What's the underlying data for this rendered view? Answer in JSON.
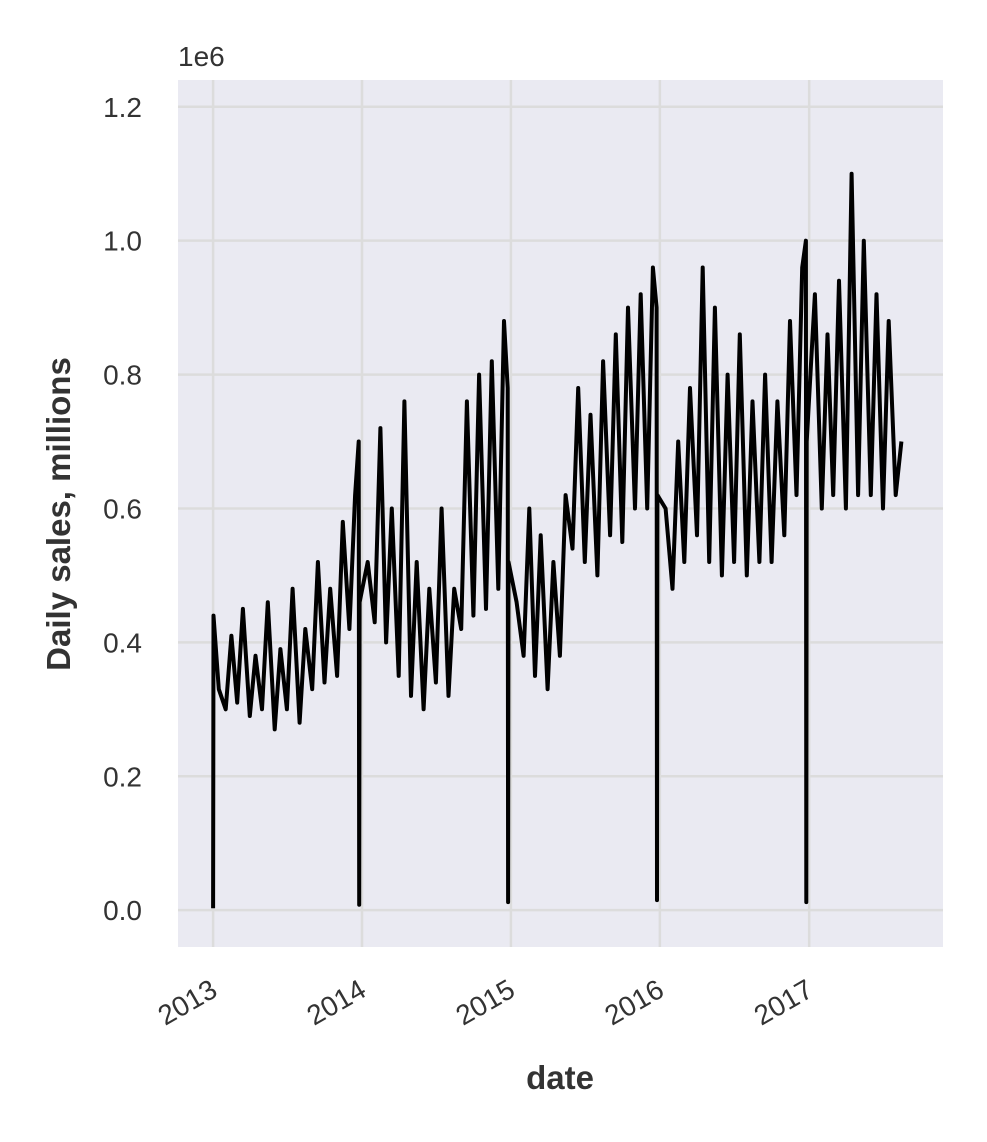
{
  "chart_data": {
    "type": "line",
    "xlabel": "date",
    "ylabel": "Daily sales, millions",
    "y_offset_label": "1e6",
    "ylim": [
      -55000,
      1240000
    ],
    "xlim": [
      "2012-10-07",
      "2017-11-25"
    ],
    "yticks": [
      0,
      200000,
      400000,
      600000,
      800000,
      1000000,
      1200000
    ],
    "ytick_labels": [
      "0.0",
      "0.2",
      "0.4",
      "0.6",
      "0.8",
      "1.0",
      "1.2"
    ],
    "xticks": [
      "2013-01-01",
      "2014-01-01",
      "2015-01-01",
      "2016-01-01",
      "2017-01-01"
    ],
    "xtick_labels": [
      "2013",
      "2014",
      "2015",
      "2016",
      "2017"
    ],
    "grid": true,
    "line_color": "#000000",
    "background_color": "#eaeaf2",
    "grid_color": "#dcdcdc",
    "series": [
      {
        "x": [
          "2013-01-01",
          "2013-01-02",
          "2013-01-15",
          "2013-02-01",
          "2013-02-15",
          "2013-03-01",
          "2013-03-15",
          "2013-04-01",
          "2013-04-15",
          "2013-05-01",
          "2013-05-15",
          "2013-06-01",
          "2013-06-15",
          "2013-07-01",
          "2013-07-15",
          "2013-08-01",
          "2013-08-15",
          "2013-09-01",
          "2013-09-15",
          "2013-10-01",
          "2013-10-15",
          "2013-11-01",
          "2013-11-15",
          "2013-12-01",
          "2013-12-15",
          "2013-12-24",
          "2013-12-25",
          "2013-12-26",
          "2014-01-15",
          "2014-02-01",
          "2014-02-15",
          "2014-03-01",
          "2014-03-15",
          "2014-04-01",
          "2014-04-15",
          "2014-05-01",
          "2014-05-15",
          "2014-06-01",
          "2014-06-15",
          "2014-07-01",
          "2014-07-15",
          "2014-08-01",
          "2014-08-15",
          "2014-09-01",
          "2014-09-15",
          "2014-10-01",
          "2014-10-15",
          "2014-11-01",
          "2014-11-15",
          "2014-12-01",
          "2014-12-15",
          "2014-12-24",
          "2014-12-25",
          "2014-12-26",
          "2015-01-15",
          "2015-02-01",
          "2015-02-15",
          "2015-03-01",
          "2015-03-15",
          "2015-04-01",
          "2015-04-15",
          "2015-05-01",
          "2015-05-15",
          "2015-06-01",
          "2015-06-15",
          "2015-07-01",
          "2015-07-15",
          "2015-08-01",
          "2015-08-15",
          "2015-09-01",
          "2015-09-15",
          "2015-10-01",
          "2015-10-15",
          "2015-11-01",
          "2015-11-15",
          "2015-12-01",
          "2015-12-15",
          "2015-12-24",
          "2015-12-25",
          "2015-12-26",
          "2016-01-15",
          "2016-02-01",
          "2016-02-15",
          "2016-03-01",
          "2016-03-15",
          "2016-04-01",
          "2016-04-15",
          "2016-05-01",
          "2016-05-15",
          "2016-06-01",
          "2016-06-15",
          "2016-07-01",
          "2016-07-15",
          "2016-08-01",
          "2016-08-15",
          "2016-09-01",
          "2016-09-15",
          "2016-10-01",
          "2016-10-15",
          "2016-11-01",
          "2016-11-15",
          "2016-12-01",
          "2016-12-15",
          "2016-12-24",
          "2016-12-25",
          "2016-12-26",
          "2017-01-15",
          "2017-02-01",
          "2017-02-15",
          "2017-03-01",
          "2017-03-15",
          "2017-04-01",
          "2017-04-15",
          "2017-05-01",
          "2017-05-15",
          "2017-06-01",
          "2017-06-15",
          "2017-07-01",
          "2017-07-15",
          "2017-08-01",
          "2017-08-15"
        ],
        "y": [
          3000,
          440000,
          330000,
          300000,
          410000,
          310000,
          450000,
          290000,
          380000,
          300000,
          460000,
          270000,
          390000,
          300000,
          480000,
          280000,
          420000,
          330000,
          520000,
          340000,
          480000,
          350000,
          580000,
          420000,
          620000,
          700000,
          8000,
          460000,
          520000,
          430000,
          720000,
          400000,
          600000,
          350000,
          760000,
          320000,
          520000,
          300000,
          480000,
          340000,
          600000,
          320000,
          480000,
          420000,
          760000,
          440000,
          800000,
          450000,
          820000,
          480000,
          880000,
          780000,
          12000,
          520000,
          460000,
          380000,
          600000,
          350000,
          560000,
          330000,
          520000,
          380000,
          620000,
          540000,
          780000,
          520000,
          740000,
          500000,
          820000,
          560000,
          860000,
          550000,
          900000,
          600000,
          920000,
          600000,
          960000,
          900000,
          15000,
          620000,
          600000,
          480000,
          700000,
          520000,
          780000,
          560000,
          960000,
          520000,
          900000,
          500000,
          800000,
          520000,
          860000,
          500000,
          760000,
          520000,
          800000,
          520000,
          760000,
          560000,
          880000,
          620000,
          960000,
          1000000,
          12000,
          700000,
          920000,
          600000,
          860000,
          620000,
          940000,
          600000,
          1100000,
          620000,
          1000000,
          620000,
          920000,
          600000,
          880000,
          620000,
          700000
        ]
      }
    ]
  }
}
